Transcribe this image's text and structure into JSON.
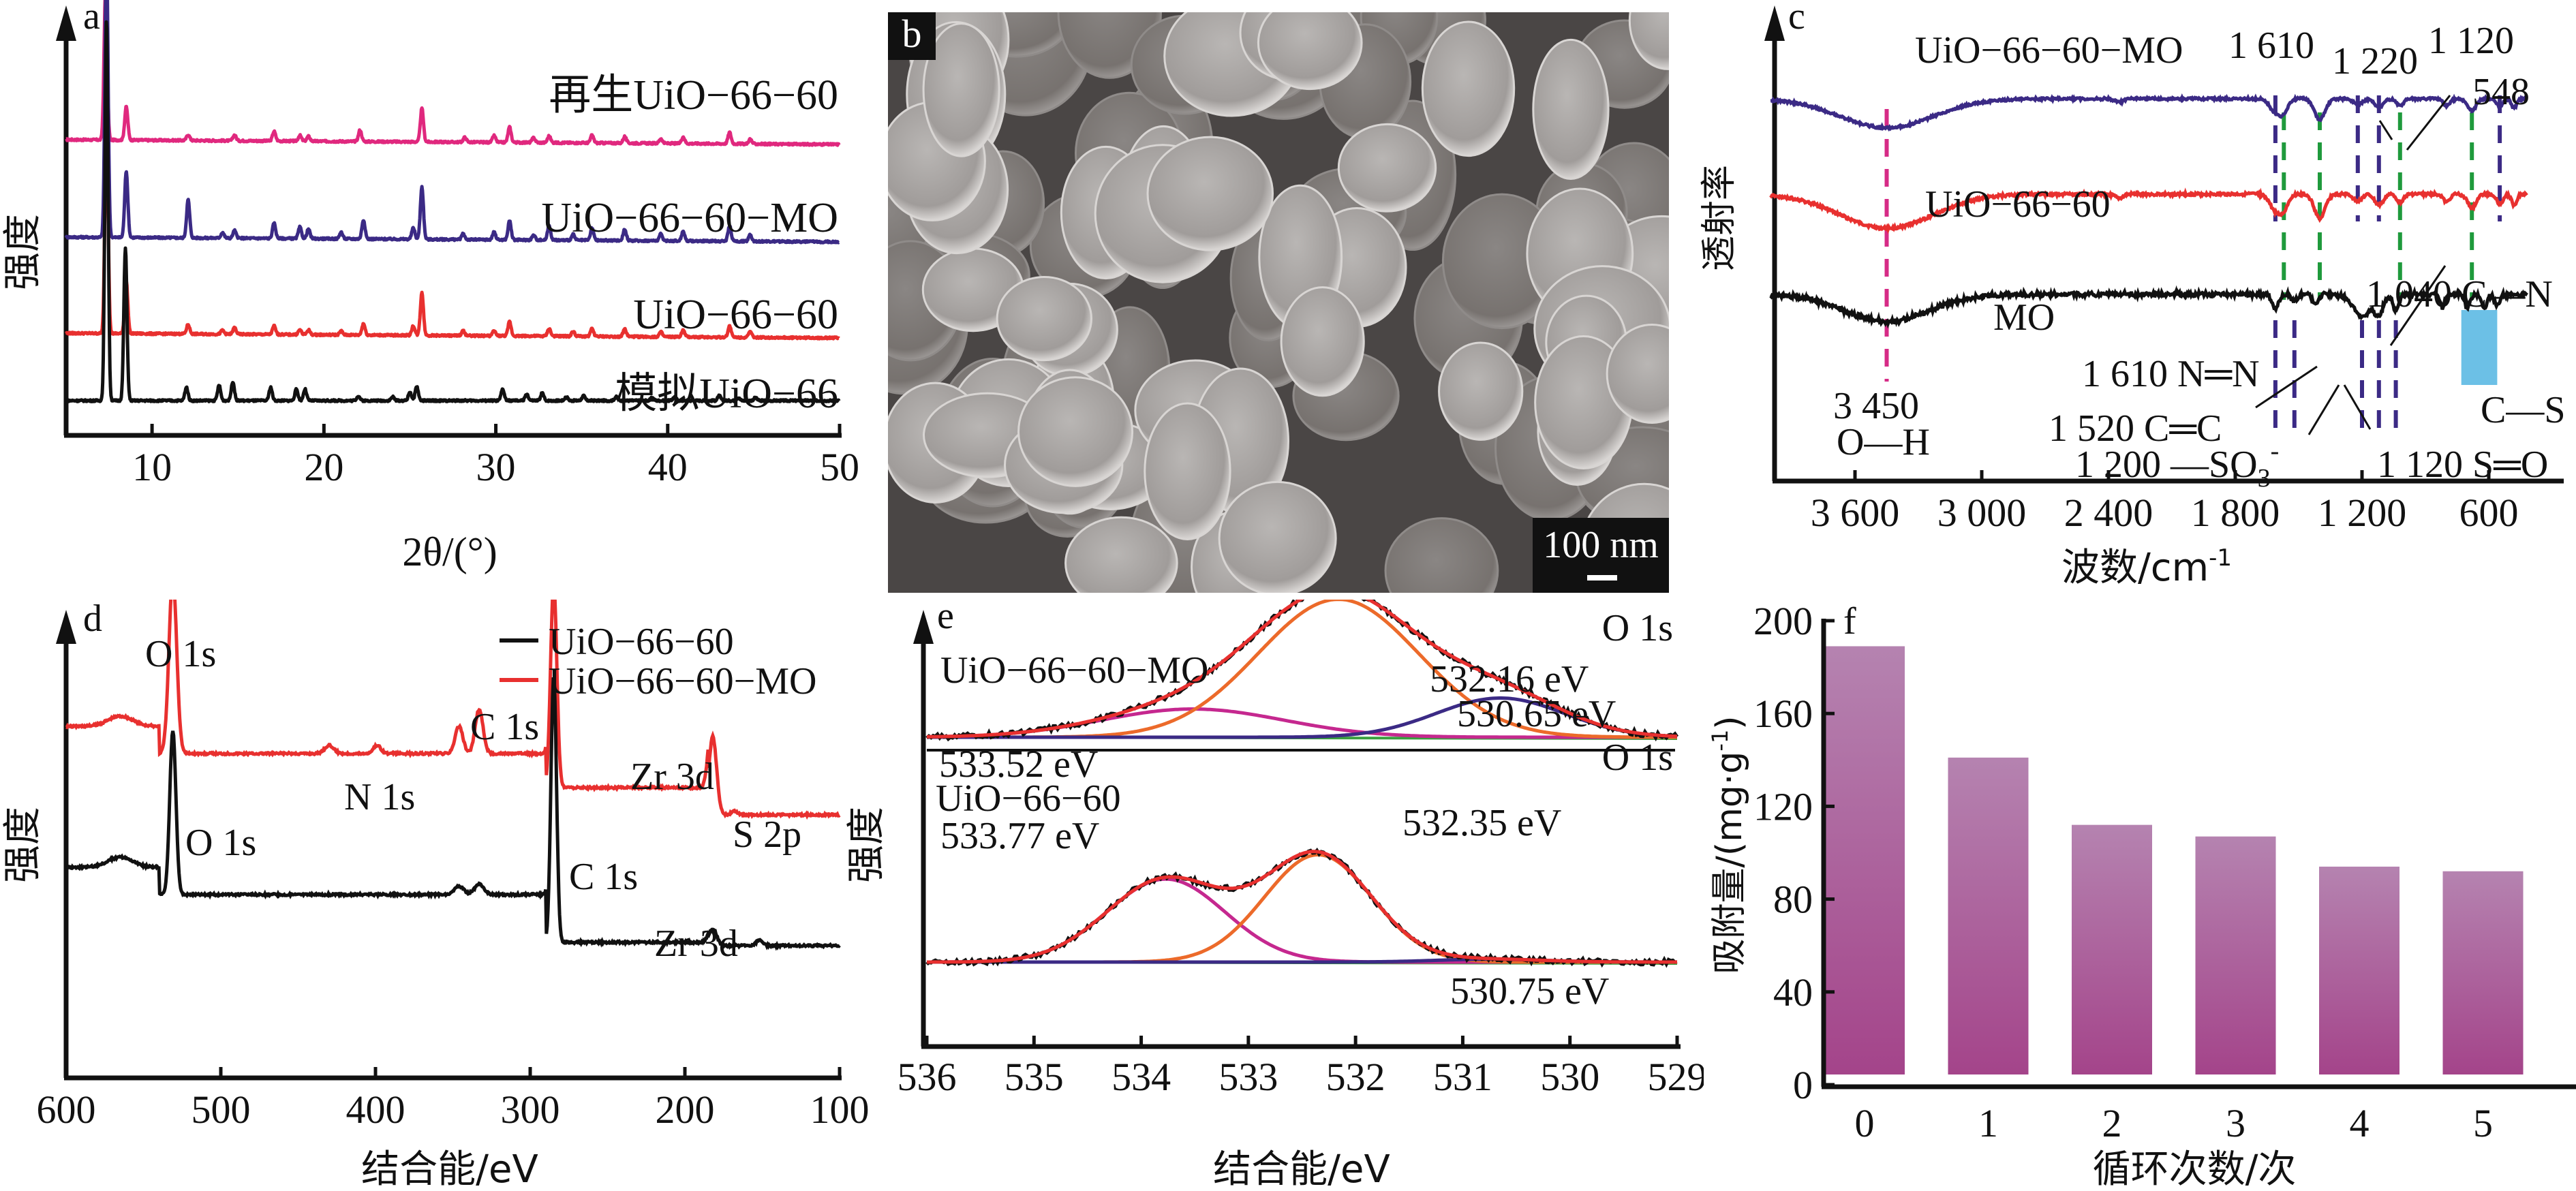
{
  "figure": {
    "panels": [
      "a",
      "b",
      "c",
      "d",
      "e",
      "f"
    ]
  },
  "panel_b": {
    "label": "b",
    "scale_bar": "100 nm",
    "description": "SEM image of UiO-66-60 particles"
  },
  "chart_data": [
    {
      "panel": "a",
      "type": "line",
      "title": "",
      "xlabel": "2θ/(°)",
      "ylabel": "强度",
      "xlim": [
        5,
        50
      ],
      "xticks": [
        10,
        20,
        30,
        40,
        50
      ],
      "grid": false,
      "series": [
        {
          "name": "再生UiO-66-60",
          "color": "#e0287e",
          "offset": 3,
          "peaks": [
            [
              7.3,
              1.6
            ],
            [
              8.5,
              0.35
            ],
            [
              12.1,
              0.06
            ],
            [
              14.8,
              0.06
            ],
            [
              17.1,
              0.1
            ],
            [
              18.6,
              0.06
            ],
            [
              19.1,
              0.05
            ],
            [
              22.1,
              0.12
            ],
            [
              25.7,
              0.35
            ],
            [
              28.2,
              0.05
            ],
            [
              29.9,
              0.07
            ],
            [
              30.8,
              0.16
            ],
            [
              32.2,
              0.05
            ],
            [
              33.1,
              0.07
            ],
            [
              35.6,
              0.08
            ],
            [
              37.5,
              0.07
            ],
            [
              39.6,
              0.05
            ],
            [
              40.9,
              0.07
            ],
            [
              43.6,
              0.12
            ],
            [
              44.8,
              0.05
            ]
          ]
        },
        {
          "name": "UiO-66-60-MO",
          "color": "#3b2a85",
          "offset": 2,
          "peaks": [
            [
              7.35,
              3.0
            ],
            [
              8.5,
              0.7
            ],
            [
              12.1,
              0.4
            ],
            [
              14.1,
              0.06
            ],
            [
              14.8,
              0.08
            ],
            [
              17.1,
              0.16
            ],
            [
              18.6,
              0.12
            ],
            [
              19.1,
              0.1
            ],
            [
              21.0,
              0.07
            ],
            [
              22.3,
              0.2
            ],
            [
              25.2,
              0.12
            ],
            [
              25.7,
              0.55
            ],
            [
              28.1,
              0.06
            ],
            [
              29.9,
              0.08
            ],
            [
              30.8,
              0.2
            ],
            [
              32.2,
              0.05
            ],
            [
              33.1,
              0.15
            ],
            [
              34.5,
              0.06
            ],
            [
              35.6,
              0.13
            ],
            [
              37.5,
              0.12
            ],
            [
              39.6,
              0.07
            ],
            [
              40.9,
              0.1
            ],
            [
              43.6,
              0.16
            ],
            [
              44.8,
              0.07
            ]
          ]
        },
        {
          "name": "UiO-66-60",
          "color": "#e8302f",
          "offset": 1,
          "peaks": [
            [
              7.35,
              2.4
            ],
            [
              8.5,
              0.55
            ],
            [
              12.1,
              0.1
            ],
            [
              14.1,
              0.04
            ],
            [
              14.8,
              0.07
            ],
            [
              17.1,
              0.09
            ],
            [
              18.6,
              0.05
            ],
            [
              19.1,
              0.05
            ],
            [
              21.0,
              0.04
            ],
            [
              22.3,
              0.12
            ],
            [
              25.2,
              0.1
            ],
            [
              25.7,
              0.45
            ],
            [
              28.1,
              0.05
            ],
            [
              29.9,
              0.05
            ],
            [
              30.8,
              0.15
            ],
            [
              33.1,
              0.08
            ],
            [
              34.5,
              0.05
            ],
            [
              35.6,
              0.08
            ],
            [
              37.5,
              0.08
            ],
            [
              39.6,
              0.05
            ],
            [
              40.9,
              0.07
            ],
            [
              43.6,
              0.12
            ],
            [
              44.8,
              0.06
            ]
          ]
        },
        {
          "name": "模拟UiO-66",
          "color": "#111111",
          "offset": 0,
          "peaks": [
            [
              7.35,
              4.0
            ],
            [
              8.45,
              1.6
            ],
            [
              12.0,
              0.14
            ],
            [
              13.9,
              0.16
            ],
            [
              14.7,
              0.2
            ],
            [
              16.9,
              0.14
            ],
            [
              18.4,
              0.12
            ],
            [
              18.9,
              0.12
            ],
            [
              22.0,
              0.05
            ],
            [
              24.0,
              0.04
            ],
            [
              25.0,
              0.09
            ],
            [
              25.4,
              0.15
            ],
            [
              30.4,
              0.12
            ],
            [
              31.8,
              0.07
            ],
            [
              32.7,
              0.08
            ],
            [
              34.1,
              0.04
            ],
            [
              35.1,
              0.05
            ],
            [
              37.0,
              0.04
            ],
            [
              39.1,
              0.03
            ],
            [
              40.4,
              0.04
            ],
            [
              43.0,
              0.05
            ],
            [
              44.1,
              0.03
            ],
            [
              45.1,
              0.03
            ]
          ]
        }
      ]
    },
    {
      "panel": "c",
      "type": "line",
      "xlabel": "波数/cm⁻¹",
      "ylabel": "透射率",
      "xlim": [
        4000,
        400
      ],
      "xticks": [
        3600,
        3000,
        2400,
        1800,
        1200,
        600
      ],
      "xtick_labels": [
        "3 600",
        "3 000",
        "2 400",
        "1 800",
        "1 200",
        "600"
      ],
      "grid": false,
      "series": [
        {
          "name": "UiO-66-60-MO",
          "color": "#3b2a85"
        },
        {
          "name": "UiO-66-60",
          "color": "#e8302f"
        },
        {
          "name": "MO",
          "color": "#111111"
        }
      ],
      "reference_lines": [
        {
          "wavenumber": 3450,
          "color": "#d62b86",
          "scope": "all"
        },
        {
          "wavenumber": 1610,
          "color": "#3b2a85",
          "scope": "top"
        },
        {
          "wavenumber": 1570,
          "color": "#1f9a3c",
          "scope": "top-mid"
        },
        {
          "wavenumber": 1400,
          "color": "#1f9a3c",
          "scope": "top-mid"
        },
        {
          "wavenumber": 1220,
          "color": "#3b2a85",
          "scope": "top"
        },
        {
          "wavenumber": 1120,
          "color": "#3b2a85",
          "scope": "top"
        },
        {
          "wavenumber": 1020,
          "color": "#1f9a3c",
          "scope": "top-mid"
        },
        {
          "wavenumber": 680,
          "color": "#1f9a3c",
          "scope": "top-mid"
        },
        {
          "wavenumber": 548,
          "color": "#3b2a85",
          "scope": "top"
        },
        {
          "wavenumber": 1610,
          "color": "#3b2a85",
          "scope": "bottom"
        },
        {
          "wavenumber": 1520,
          "color": "#3b2a85",
          "scope": "bottom"
        },
        {
          "wavenumber": 1200,
          "color": "#3b2a85",
          "scope": "bottom"
        },
        {
          "wavenumber": 1120,
          "color": "#3b2a85",
          "scope": "bottom"
        },
        {
          "wavenumber": 1040,
          "color": "#3b2a85",
          "scope": "bottom"
        }
      ],
      "highlight_box": {
        "from": 730,
        "to": 560,
        "color": "#6cc0e6",
        "label": "C—S"
      },
      "annotations": [
        "1 610",
        "1 220",
        "1 120",
        "548",
        "3 450",
        "O—H",
        "1 610 N═N",
        "1 520 C═C",
        "1 200 —SO₃⁻",
        "1 120 S═O",
        "1 040 C—N",
        "C—S"
      ]
    },
    {
      "panel": "d",
      "type": "line",
      "xlabel": "结合能/eV",
      "ylabel": "强度",
      "xlim": [
        600,
        100
      ],
      "xticks": [
        600,
        500,
        400,
        300,
        200,
        100
      ],
      "legend": {
        "placement": "top-right",
        "entries": [
          {
            "name": "UiO-66-60",
            "color": "#111111"
          },
          {
            "name": "UiO-66-60-MO",
            "color": "#e8302f"
          }
        ]
      },
      "series": [
        {
          "name": "UiO-66-60-MO",
          "color": "#e8302f",
          "peaks": [
            {
              "x": 531,
              "label": "O 1s"
            },
            {
              "x": 399,
              "label": "N 1s"
            },
            {
              "x": 284.8,
              "label": "C 1s"
            },
            {
              "x": 182,
              "label": "Zr 3d"
            },
            {
              "x": 168,
              "label": "S 2p"
            }
          ]
        },
        {
          "name": "UiO-66-60",
          "color": "#111111",
          "peaks": [
            {
              "x": 531,
              "label": "O 1s"
            },
            {
              "x": 284.8,
              "label": "C 1s"
            },
            {
              "x": 182,
              "label": "Zr 3d"
            }
          ]
        }
      ],
      "peak_labels": [
        "O 1s",
        "N 1s",
        "C 1s",
        "Zr 3d",
        "S 2p",
        "O 1s",
        "C 1s",
        "Zr 3d"
      ]
    },
    {
      "panel": "e",
      "type": "line",
      "xlabel": "结合能/eV",
      "ylabel": "强度",
      "xlim": [
        536,
        529
      ],
      "xticks": [
        536,
        535,
        534,
        533,
        532,
        531,
        530,
        529
      ],
      "subplots": [
        {
          "name": "UiO-66-60-MO",
          "region": "O 1s",
          "components": [
            {
              "center": 533.52,
              "height": 0.18,
              "width": 0.85,
              "color": "#c5288f",
              "label": "533.52 eV"
            },
            {
              "center": 532.16,
              "height": 0.88,
              "width": 0.75,
              "color": "#ec6a2a",
              "label": "532.16 eV"
            },
            {
              "center": 530.65,
              "height": 0.25,
              "width": 0.6,
              "color": "#3b2a85",
              "label": "530.65 eV"
            }
          ]
        },
        {
          "name": "UiO-66-60",
          "region": "O 1s",
          "components": [
            {
              "center": 533.77,
              "height": 0.58,
              "width": 0.55,
              "color": "#c5288f",
              "label": "533.77 eV"
            },
            {
              "center": 532.35,
              "height": 0.75,
              "width": 0.5,
              "color": "#ec6a2a",
              "label": "532.35 eV"
            },
            {
              "center": 530.75,
              "height": 0.02,
              "width": 0.5,
              "color": "#3b2a85",
              "label": "530.75 eV"
            }
          ]
        }
      ],
      "envelope_color": "#e8302f",
      "raw_color": "#111111",
      "baseline_color": "#3aa040"
    },
    {
      "panel": "f",
      "type": "bar",
      "title": "",
      "xlabel": "循环次数/次",
      "ylabel": "吸附量/(mg·g⁻¹)",
      "categories": [
        "0",
        "1",
        "2",
        "3",
        "4",
        "5"
      ],
      "values": [
        189,
        141,
        112,
        107,
        94,
        92
      ],
      "ylim": [
        0,
        200
      ],
      "yticks": [
        0,
        40,
        80,
        120,
        160,
        200
      ],
      "bar_color_top": "#b583b0",
      "bar_color_bottom": "#a4448a",
      "grid": false
    }
  ],
  "labels": {
    "a": "a",
    "c": "c",
    "d": "d",
    "e": "e",
    "f": "f",
    "intensity": "强度",
    "transmittance": "透射率",
    "two_theta": "2θ/(°)",
    "wavenumber": "波数/cm",
    "wavenumber_sup": "-1",
    "binding_energy": "结合能/eV",
    "cycles": "循环次数/次",
    "adsorption": "吸附量/(mg·g",
    "adsorption_sup": "-1",
    "adsorption_close": ")",
    "o1s": "O 1s",
    "n1s": "N 1s",
    "c1s": "C 1s",
    "zr3d": "Zr 3d",
    "s2p": "S 2p",
    "mo": "MO",
    "uio_mo": "UiO−66−60−MO",
    "uio": "UiO−66−60",
    "regen": "再生UiO−66−60",
    "sim": "模拟UiO−66",
    "c_1610": "1 610",
    "c_1220": "1 220",
    "c_1120": "1 120",
    "c_548": "548",
    "c_3450": "3 450",
    "c_oh": "O—H",
    "c_nn": "1 610 N═N",
    "c_cc": "1 520 C═C",
    "c_so3": "1 200 —SO",
    "c_so3_sub": "3",
    "c_so3_sup": "-",
    "c_so": "1 120 S═O",
    "c_cn": "1 040 C—N",
    "c_cs": "C—S",
    "e_533_52": "533.52 eV",
    "e_532_16": "532.16 eV",
    "e_530_65": "530.65 eV",
    "e_533_77": "533.77 eV",
    "e_532_35": "532.35 eV",
    "e_530_75": "530.75 eV"
  }
}
